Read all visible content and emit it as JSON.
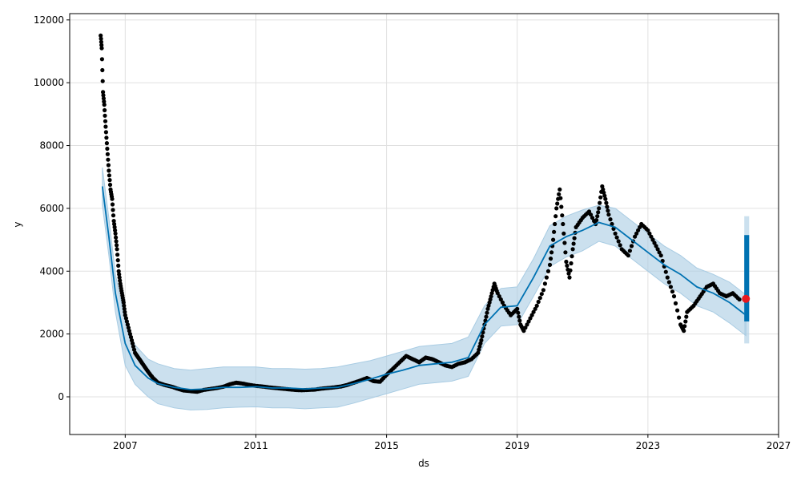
{
  "chart_data": {
    "type": "line",
    "title": "",
    "xlabel": "ds",
    "ylabel": "y",
    "xlim": [
      2005.3,
      2027.0
    ],
    "ylim": [
      -1200,
      12200
    ],
    "grid": true,
    "x_ticks": [
      2007,
      2011,
      2015,
      2019,
      2023,
      2027
    ],
    "x_tick_labels": [
      "2007",
      "2011",
      "2015",
      "2019",
      "2023",
      "2027"
    ],
    "y_ticks": [
      0,
      2000,
      4000,
      6000,
      8000,
      10000,
      12000
    ],
    "y_tick_labels": [
      "0",
      "2000",
      "4000",
      "6000",
      "8000",
      "10000",
      "12000"
    ],
    "colors": {
      "observed": "#000000",
      "forecast": "#0072B2",
      "uncertainty": "#a9cce3",
      "highlight": "#e8191e",
      "grid": "#e0e0e0"
    },
    "series": [
      {
        "kind": "forecast",
        "x": [
          2006.3,
          2006.5,
          2006.7,
          2007.0,
          2007.3,
          2007.7,
          2008.0,
          2008.5,
          2009.0,
          2009.5,
          2010.0,
          2010.5,
          2011.0,
          2011.5,
          2012.0,
          2012.5,
          2013.0,
          2013.5,
          2014.0,
          2014.5,
          2015.0,
          2015.5,
          2016.0,
          2016.5,
          2017.0,
          2017.5,
          2018.0,
          2018.5,
          2019.0,
          2019.5,
          2020.0,
          2020.5,
          2021.0,
          2021.5,
          2022.0,
          2022.5,
          2023.0,
          2023.5,
          2024.0,
          2024.5,
          2025.0,
          2025.5,
          2026.0
        ],
        "y": [
          6700,
          5100,
          3300,
          1700,
          1000,
          600,
          420,
          300,
          230,
          250,
          300,
          300,
          320,
          280,
          280,
          250,
          280,
          300,
          420,
          560,
          720,
          850,
          1000,
          1050,
          1100,
          1250,
          2300,
          2850,
          2900,
          3800,
          4800,
          5100,
          5300,
          5550,
          5400,
          5000,
          4600,
          4200,
          3900,
          3500,
          3300,
          3000,
          2600
        ]
      },
      {
        "kind": "uncertainty_band",
        "x": [
          2006.3,
          2006.5,
          2006.7,
          2007.0,
          2007.3,
          2007.7,
          2008.0,
          2008.5,
          2009.0,
          2009.5,
          2010.0,
          2010.5,
          2011.0,
          2011.5,
          2012.0,
          2012.5,
          2013.0,
          2013.5,
          2014.0,
          2014.5,
          2015.0,
          2015.5,
          2016.0,
          2016.5,
          2017.0,
          2017.5,
          2018.0,
          2018.5,
          2019.0,
          2019.5,
          2020.0,
          2020.5,
          2021.0,
          2021.5,
          2022.0,
          2022.5,
          2023.0,
          2023.5,
          2024.0,
          2024.5,
          2025.0,
          2025.5,
          2026.0
        ],
        "upper": [
          7300,
          5700,
          3900,
          2400,
          1650,
          1200,
          1050,
          900,
          850,
          900,
          950,
          950,
          950,
          900,
          900,
          880,
          900,
          950,
          1050,
          1150,
          1300,
          1450,
          1600,
          1650,
          1700,
          1900,
          2900,
          3450,
          3500,
          4400,
          5450,
          5750,
          5950,
          6100,
          6000,
          5600,
          5200,
          4800,
          4500,
          4100,
          3900,
          3650,
          3250
        ],
        "lower": [
          6100,
          4500,
          2700,
          1000,
          400,
          0,
          -220,
          -350,
          -420,
          -400,
          -350,
          -330,
          -320,
          -350,
          -350,
          -380,
          -350,
          -330,
          -200,
          -50,
          100,
          250,
          400,
          450,
          500,
          650,
          1700,
          2250,
          2300,
          3200,
          4150,
          4450,
          4650,
          4950,
          4800,
          4400,
          4000,
          3600,
          3300,
          2900,
          2700,
          2350,
          1950
        ]
      },
      {
        "kind": "forecast_horizon",
        "x_start": 2025.95,
        "x_end": 2026.1,
        "y_low": 2400,
        "y_high": 5150,
        "band_low": 1700,
        "band_high": 5750
      },
      {
        "kind": "observed_points",
        "x": [
          2006.25,
          2006.28,
          2006.32,
          2006.36,
          2006.4,
          2006.45,
          2006.5,
          2006.55,
          2006.6,
          2006.65,
          2006.7,
          2006.75,
          2006.8,
          2006.85,
          2006.9,
          2006.95,
          2007.0,
          2007.1,
          2007.2,
          2007.3,
          2007.4,
          2007.5,
          2007.6,
          2007.7,
          2007.85,
          2008.0,
          2008.2,
          2008.4,
          2008.6,
          2008.8,
          2009.0,
          2009.2,
          2009.4,
          2009.6,
          2009.8,
          2010.0,
          2010.2,
          2010.4,
          2010.6,
          2010.8,
          2011.0,
          2011.2,
          2011.4,
          2011.6,
          2011.8,
          2012.0,
          2012.2,
          2012.4,
          2012.6,
          2012.8,
          2013.0,
          2013.2,
          2013.4,
          2013.6,
          2013.8,
          2014.0,
          2014.2,
          2014.4,
          2014.6,
          2014.8,
          2015.0,
          2015.2,
          2015.4,
          2015.6,
          2015.8,
          2016.0,
          2016.2,
          2016.4,
          2016.6,
          2016.8,
          2017.0,
          2017.2,
          2017.4,
          2017.6,
          2017.8,
          2017.9,
          2018.0,
          2018.1,
          2018.2,
          2018.3,
          2018.4,
          2018.6,
          2018.8,
          2019.0,
          2019.1,
          2019.2,
          2019.4,
          2019.6,
          2019.8,
          2020.0,
          2020.1,
          2020.2,
          2020.3,
          2020.4,
          2020.5,
          2020.6,
          2020.7,
          2020.8,
          2021.0,
          2021.2,
          2021.4,
          2021.5,
          2021.6,
          2021.7,
          2021.8,
          2022.0,
          2022.2,
          2022.4,
          2022.6,
          2022.8,
          2023.0,
          2023.2,
          2023.4,
          2023.6,
          2023.8,
          2024.0,
          2024.1,
          2024.2,
          2024.4,
          2024.6,
          2024.8,
          2025.0,
          2025.2,
          2025.4,
          2025.6,
          2025.8
        ],
        "y": [
          11500,
          11100,
          9700,
          9300,
          8600,
          7900,
          7200,
          6600,
          6300,
          5600,
          5200,
          4700,
          4000,
          3600,
          3300,
          3000,
          2600,
          2200,
          1800,
          1400,
          1250,
          1100,
          950,
          800,
          600,
          450,
          380,
          330,
          260,
          200,
          180,
          160,
          220,
          250,
          280,
          320,
          400,
          450,
          420,
          380,
          350,
          330,
          300,
          280,
          260,
          240,
          220,
          210,
          220,
          230,
          260,
          280,
          300,
          330,
          380,
          450,
          520,
          600,
          500,
          480,
          700,
          900,
          1100,
          1300,
          1200,
          1100,
          1250,
          1200,
          1100,
          1000,
          950,
          1050,
          1100,
          1200,
          1400,
          1800,
          2300,
          2800,
          3200,
          3600,
          3300,
          2900,
          2600,
          2800,
          2300,
          2100,
          2500,
          2900,
          3400,
          4200,
          5000,
          6000,
          6600,
          5500,
          4300,
          3800,
          4700,
          5400,
          5700,
          5900,
          5500,
          6000,
          6700,
          6300,
          5800,
          5200,
          4700,
          4500,
          5100,
          5500,
          5300,
          4900,
          4500,
          3800,
          3200,
          2300,
          2100,
          2700,
          2900,
          3200,
          3500,
          3600,
          3300,
          3200,
          3300,
          3100
        ]
      },
      {
        "kind": "highlight_point",
        "x": 2026.0,
        "y": 3120
      }
    ]
  }
}
